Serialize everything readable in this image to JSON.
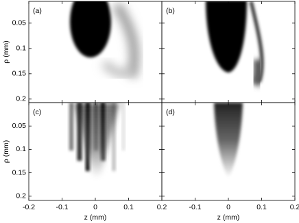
{
  "chart_data": [
    {
      "type": "image",
      "label": "(a)",
      "ylabel": "ρ (mm)",
      "xlim": [
        -0.2,
        0.2
      ],
      "xticks": [
        -0.2,
        -0.1,
        0,
        0.1,
        0.2
      ],
      "ylim": [
        0.207,
        0.007
      ],
      "yticks": [
        0.05,
        0.1,
        0.15,
        0.2
      ],
      "show_xtick_labels": false,
      "show_ytick_labels": true
    },
    {
      "type": "image",
      "label": "(b)",
      "xlim": [
        -0.2,
        0.2
      ],
      "xticks": [
        -0.2,
        -0.1,
        0,
        0.1,
        0.2
      ],
      "ylim": [
        0.207,
        0.007
      ],
      "yticks": [
        0.05,
        0.1,
        0.15,
        0.2
      ],
      "show_xtick_labels": false,
      "show_ytick_labels": false
    },
    {
      "type": "image",
      "label": "(c)",
      "ylabel": "ρ (mm)",
      "xlabel": "z (mm)",
      "xlim": [
        -0.2,
        0.2
      ],
      "xticks": [
        -0.2,
        -0.1,
        0,
        0.1,
        0.2
      ],
      "ylim": [
        0.209,
        0
      ],
      "yticks": [
        0.05,
        0.1,
        0.15,
        0.2
      ],
      "show_xtick_labels": true,
      "show_ytick_labels": true
    },
    {
      "type": "image",
      "label": "(d)",
      "xlabel": "z (mm)",
      "xlim": [
        -0.2,
        0.2
      ],
      "xticks": [
        -0.1,
        0,
        0.1,
        0.2
      ],
      "ylim": [
        0.209,
        0
      ],
      "yticks": [
        0.05,
        0.1,
        0.15,
        0.2
      ],
      "show_xtick_labels": true,
      "show_ytick_labels": false
    }
  ]
}
